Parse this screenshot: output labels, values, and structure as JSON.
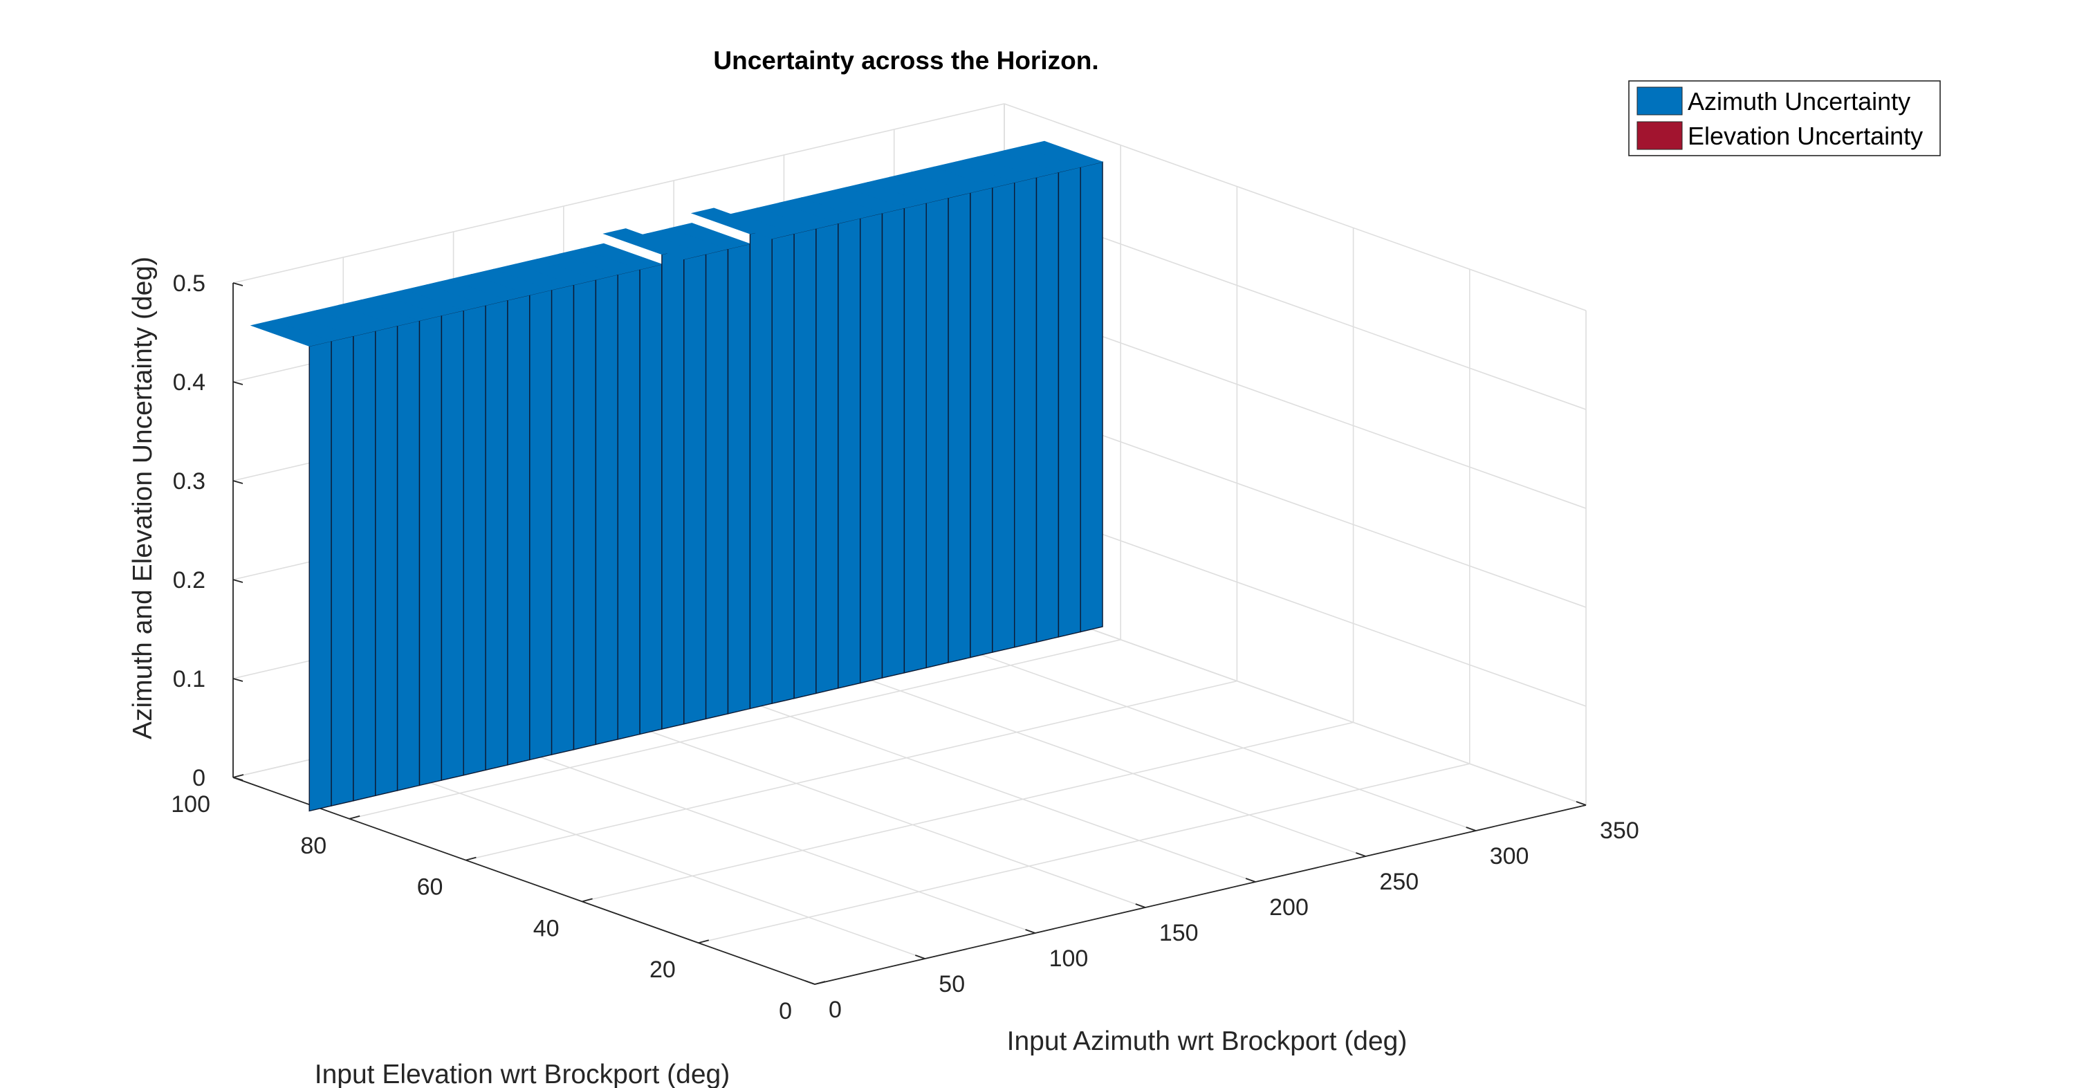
{
  "chart_data": {
    "type": "bar3",
    "title": "Uncertainty across the Horizon.",
    "xlabel": "Input Azimuth wrt Brockport (deg)",
    "ylabel": "Input Elevation wrt Brockport (deg)",
    "zlabel": "Azimuth and Elevation Uncertainty (deg)",
    "xlim": [
      0,
      350
    ],
    "ylim": [
      0,
      100
    ],
    "zlim": [
      0,
      0.5
    ],
    "xticks": [
      "0",
      "50",
      "100",
      "150",
      "200",
      "250",
      "300",
      "350"
    ],
    "yticks": [
      "0",
      "20",
      "40",
      "60",
      "80",
      "100"
    ],
    "zticks": [
      "0",
      "0.1",
      "0.2",
      "0.3",
      "0.4",
      "0.5"
    ],
    "grid": true,
    "legend_position": "top-right",
    "series": [
      {
        "name": "Azimuth Uncertainty",
        "color": "#0072BD",
        "elevation": 90,
        "azimuth": [
          0,
          10,
          20,
          30,
          40,
          50,
          60,
          70,
          80,
          90,
          100,
          110,
          120,
          130,
          140,
          150,
          160,
          170,
          180,
          190,
          200,
          210,
          220,
          230,
          240,
          250,
          260,
          270,
          280,
          290,
          300,
          310,
          320,
          330,
          340,
          350
        ],
        "values": [
          0.47,
          0.47,
          0.47,
          0.47,
          0.47,
          0.47,
          0.47,
          0.47,
          0.47,
          0.47,
          0.47,
          0.47,
          0.47,
          0.47,
          0.47,
          0.47,
          0.48,
          0.47,
          0.47,
          0.47,
          0.48,
          0.47,
          0.47,
          0.47,
          0.47,
          0.47,
          0.47,
          0.47,
          0.47,
          0.47,
          0.47,
          0.47,
          0.47,
          0.47,
          0.47,
          0.47
        ]
      },
      {
        "name": "Elevation Uncertainty",
        "color": "#A2142F",
        "values": []
      }
    ]
  }
}
